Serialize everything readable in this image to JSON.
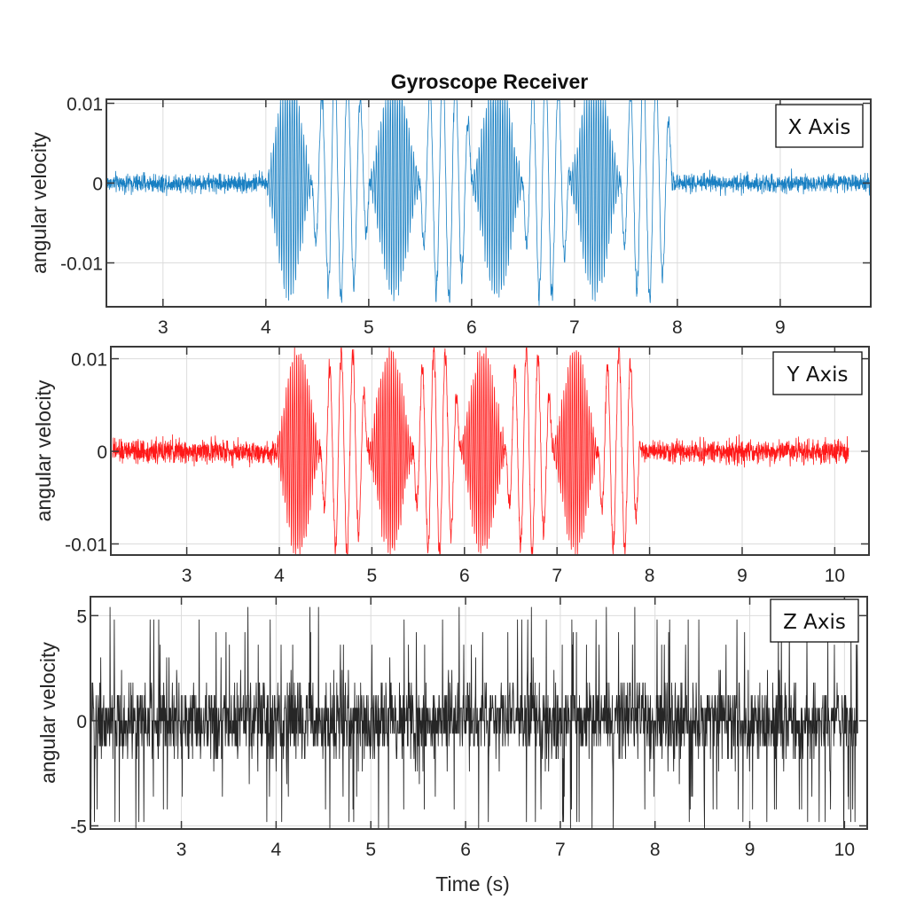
{
  "figure": {
    "title": "Gyroscope Receiver",
    "xlabel": "Time (s)"
  },
  "chart_data": [
    {
      "type": "line",
      "name": "gyroscope-x",
      "title": "Gyroscope Receiver",
      "legend": "X Axis",
      "legend_position": "top-right",
      "ylabel": "angular velocity",
      "xlabel": "",
      "color": "#0072BD",
      "xlim": [
        2.45,
        9.88
      ],
      "ylim": [
        -0.0155,
        0.0105
      ],
      "xticks": [
        3,
        4,
        5,
        6,
        7,
        8,
        9
      ],
      "xtick_labels": [
        "3",
        "4",
        "5",
        "6",
        "7",
        "8",
        "9"
      ],
      "yticks": [
        0.01,
        0,
        -0.01
      ],
      "ytick_labels": [
        "0.01",
        "0",
        "-0.01"
      ],
      "grid": true,
      "signal": {
        "t_start": 2.45,
        "t_end": 9.88,
        "burst_start": 4.0,
        "burst_end": 7.95,
        "noise_amplitude": 0.0025,
        "burst_peak_amplitude": 0.0145,
        "burst_segments": [
          {
            "t0": 4.0,
            "t1": 4.45,
            "kind": "fast"
          },
          {
            "t0": 4.45,
            "t1": 5.0,
            "kind": "slow"
          },
          {
            "t0": 5.0,
            "t1": 5.5,
            "kind": "fast"
          },
          {
            "t0": 5.5,
            "t1": 6.0,
            "kind": "slow"
          },
          {
            "t0": 6.0,
            "t1": 6.5,
            "kind": "fast"
          },
          {
            "t0": 6.5,
            "t1": 6.95,
            "kind": "slow"
          },
          {
            "t0": 6.95,
            "t1": 7.45,
            "kind": "fast"
          },
          {
            "t0": 7.45,
            "t1": 7.95,
            "kind": "slow"
          }
        ]
      }
    },
    {
      "type": "line",
      "name": "gyroscope-y",
      "legend": "Y Axis",
      "legend_position": "top-right",
      "ylabel": "angular velocity",
      "xlabel": "",
      "color": "#FF0000",
      "xlim": [
        2.18,
        10.37
      ],
      "ylim": [
        -0.0112,
        0.0113
      ],
      "xticks": [
        3,
        4,
        5,
        6,
        7,
        8,
        9,
        10
      ],
      "xtick_labels": [
        "3",
        "4",
        "5",
        "6",
        "7",
        "8",
        "9",
        "10"
      ],
      "yticks": [
        0.01,
        0,
        -0.01
      ],
      "ytick_labels": [
        "0.01",
        "0",
        "-0.01"
      ],
      "grid": true,
      "signal": {
        "t_start": 2.2,
        "t_end": 10.15,
        "burst_start": 3.95,
        "burst_end": 7.9,
        "noise_amplitude": 0.0027,
        "burst_peak_amplitude": 0.0112,
        "burst_segments": [
          {
            "t0": 3.95,
            "t1": 4.45,
            "kind": "fast"
          },
          {
            "t0": 4.45,
            "t1": 4.95,
            "kind": "slow"
          },
          {
            "t0": 4.95,
            "t1": 5.45,
            "kind": "fast"
          },
          {
            "t0": 5.45,
            "t1": 5.95,
            "kind": "slow"
          },
          {
            "t0": 5.95,
            "t1": 6.45,
            "kind": "fast"
          },
          {
            "t0": 6.45,
            "t1": 6.95,
            "kind": "slow"
          },
          {
            "t0": 6.95,
            "t1": 7.45,
            "kind": "fast"
          },
          {
            "t0": 7.45,
            "t1": 7.9,
            "kind": "slow"
          }
        ]
      }
    },
    {
      "type": "line",
      "name": "gyroscope-z",
      "legend": "Z Axis",
      "legend_position": "top-right",
      "ylabel": "angular velocity",
      "xlabel": "Time (s)",
      "color": "#000000",
      "xlim": [
        2.04,
        10.24
      ],
      "ylim": [
        -5.15,
        5.9
      ],
      "xticks": [
        3,
        4,
        5,
        6,
        7,
        8,
        9,
        10
      ],
      "xtick_labels": [
        "3",
        "4",
        "5",
        "6",
        "7",
        "8",
        "9",
        "10"
      ],
      "yticks": [
        5,
        0,
        -5
      ],
      "ytick_labels": [
        "5",
        "0",
        "-5"
      ],
      "grid": true,
      "signal": {
        "t_start": 2.04,
        "t_end": 10.14,
        "noise_amplitude": 2.4,
        "spike_amplitude": 5.4,
        "quantization_step": 0.6
      }
    }
  ]
}
